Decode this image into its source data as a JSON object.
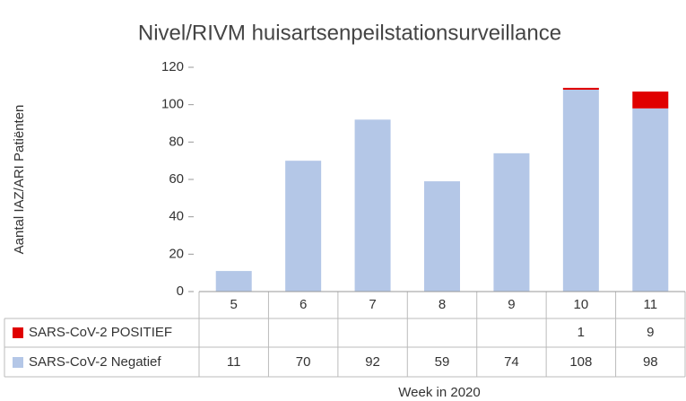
{
  "chart_data": {
    "type": "stacked_bar",
    "title": "Nivel/RIVM huisartsenpeilstationsurveillance",
    "y_label": "Aantal IAZ/ARI Patiënten",
    "x_label": "Week in 2020",
    "categories": [
      "5",
      "6",
      "7",
      "8",
      "9",
      "10",
      "11"
    ],
    "series": [
      {
        "name": "SARS-CoV-2 Negatief",
        "color": "#b4c7e7",
        "values": [
          11,
          70,
          92,
          59,
          74,
          108,
          98
        ]
      },
      {
        "name": "SARS-CoV-2 POSITIEF",
        "color": "#e00000",
        "values": [
          null,
          null,
          null,
          null,
          null,
          1,
          9
        ]
      }
    ],
    "ylim": [
      0,
      120
    ],
    "yticks": [
      0,
      20,
      40,
      60,
      80,
      100,
      120
    ],
    "grid": false
  }
}
